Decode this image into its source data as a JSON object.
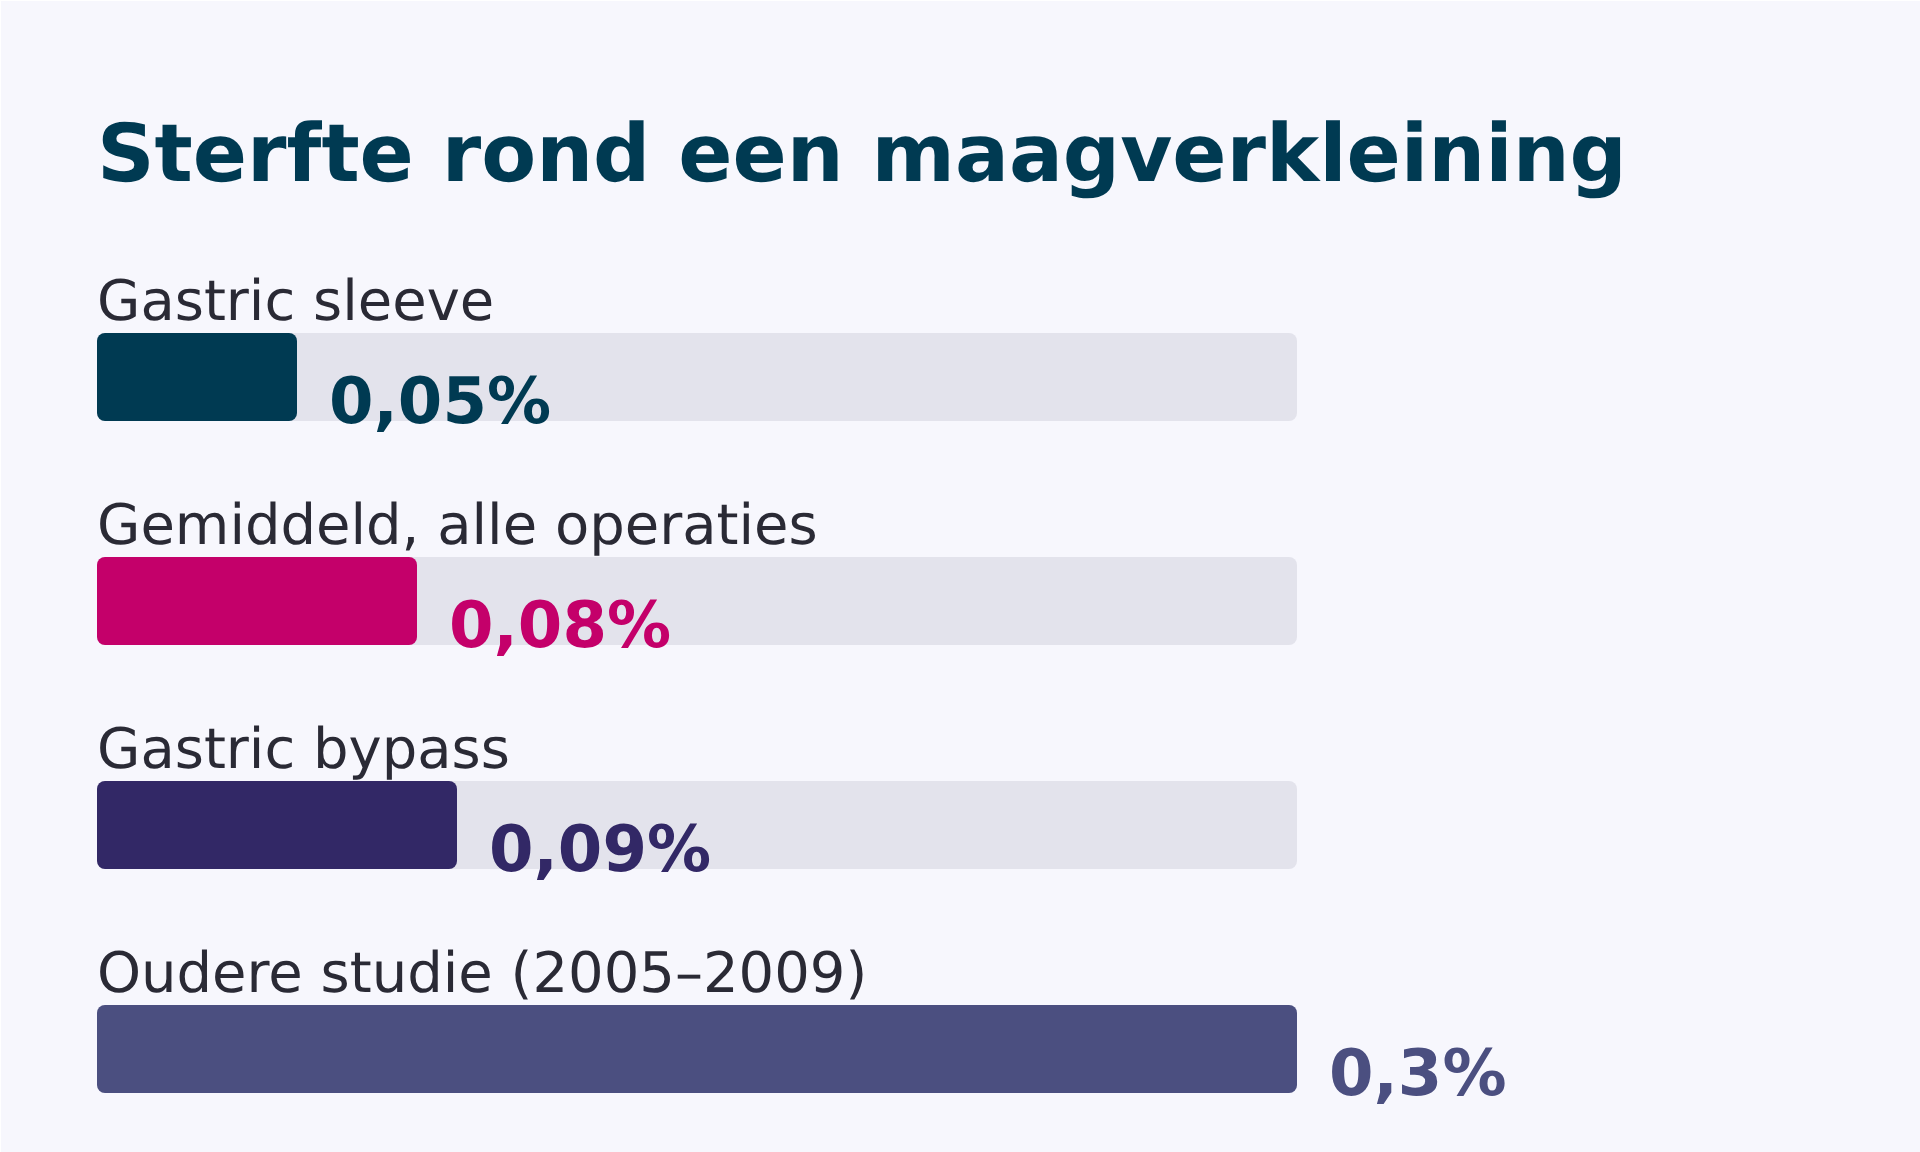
{
  "chart_data": {
    "type": "bar",
    "title": "Sterfte rond een maagverkleining",
    "orientation": "horizontal",
    "categories": [
      "Gastric sleeve",
      "Gemiddeld, alle operaties",
      "Gastric bypass",
      "Oudere studie (2005–2009)"
    ],
    "values": [
      0.05,
      0.08,
      0.09,
      0.3
    ],
    "colors": [
      "#003a52",
      "#c4006a",
      "#322866",
      "#4b4f80"
    ],
    "value_labels": [
      "0,05%",
      "0,08%",
      "0,09%",
      "0,3%"
    ],
    "xlim": [
      0,
      0.3
    ]
  }
}
